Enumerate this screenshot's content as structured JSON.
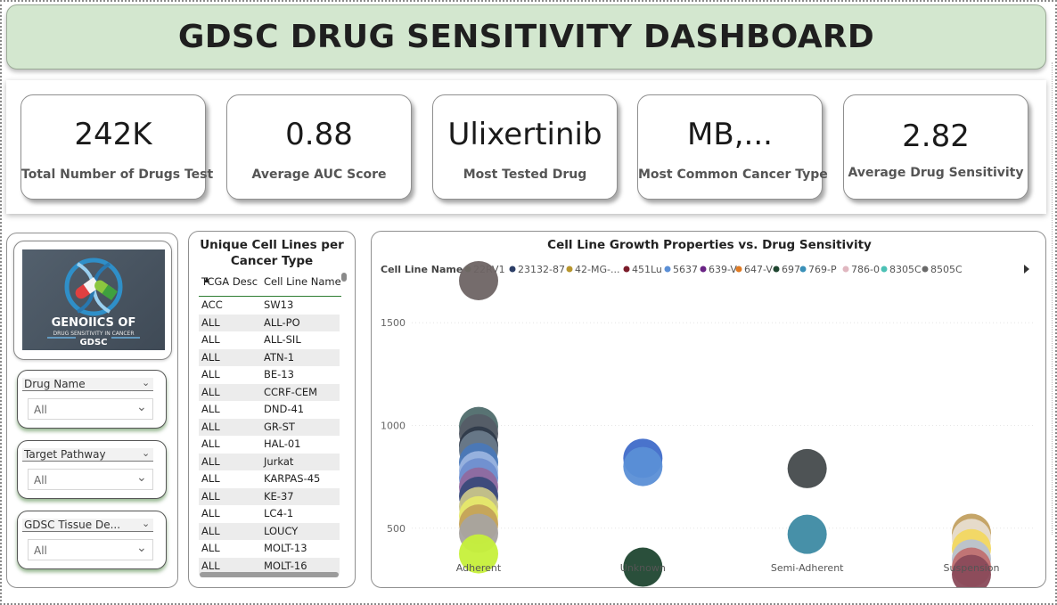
{
  "header": {
    "title": "GDSC DRUG SENSITIVITY DASHBOARD"
  },
  "kpis": [
    {
      "value": "242K",
      "label": "Total Number of Drugs Test"
    },
    {
      "value": "0.88",
      "label": "Average AUC Score"
    },
    {
      "value": "Ulixertinib",
      "label": "Most Tested Drug"
    },
    {
      "value": "MB,...",
      "label": "Most Common Cancer Type"
    },
    {
      "value": "2.82",
      "label": "Average Drug Sensitivity"
    }
  ],
  "logo": {
    "line1": "GENOIICS OF",
    "line2": "DRUG SENSITIVITY IN CANCER",
    "line3": "GDSC"
  },
  "slicers": [
    {
      "title": "Drug Name",
      "value": "All"
    },
    {
      "title": "Target Pathway",
      "value": "All"
    },
    {
      "title": "GDSC Tissue De...",
      "value": "All"
    }
  ],
  "table": {
    "title_line1": "Unique Cell Lines per",
    "title_line2": "Cancer Type",
    "columns": [
      "TCGA Desc",
      "Cell Line Name"
    ],
    "rows": [
      [
        "ACC",
        "SW13"
      ],
      [
        "ALL",
        "ALL-PO"
      ],
      [
        "ALL",
        "ALL-SIL"
      ],
      [
        "ALL",
        "ATN-1"
      ],
      [
        "ALL",
        "BE-13"
      ],
      [
        "ALL",
        "CCRF-CEM"
      ],
      [
        "ALL",
        "DND-41"
      ],
      [
        "ALL",
        "GR-ST"
      ],
      [
        "ALL",
        "HAL-01"
      ],
      [
        "ALL",
        "Jurkat"
      ],
      [
        "ALL",
        "KARPAS-45"
      ],
      [
        "ALL",
        "KE-37"
      ],
      [
        "ALL",
        "LC4-1"
      ],
      [
        "ALL",
        "LOUCY"
      ],
      [
        "ALL",
        "MOLT-13"
      ],
      [
        "ALL",
        "MOLT-16"
      ]
    ]
  },
  "chart_data": {
    "type": "scatter",
    "title": "Cell Line Growth Properties vs. Drug Sensitivity",
    "legend_title": "Cell Line Name",
    "legend_position": "top",
    "legend": [
      {
        "name": "22RV1",
        "color": "#5fa84a"
      },
      {
        "name": "23132-87",
        "color": "#2c3e66"
      },
      {
        "name": "42-MG-...",
        "color": "#b8962e"
      },
      {
        "name": "451Lu",
        "color": "#7b1c2a"
      },
      {
        "name": "5637",
        "color": "#5b8fd6"
      },
      {
        "name": "639-V",
        "color": "#6a2485"
      },
      {
        "name": "647-V",
        "color": "#e07b24"
      },
      {
        "name": "697",
        "color": "#1f4630"
      },
      {
        "name": "769-P",
        "color": "#3a90b8"
      },
      {
        "name": "786-0",
        "color": "#e0b7c0"
      },
      {
        "name": "8305C",
        "color": "#4cc1b5"
      },
      {
        "name": "8505C",
        "color": "#6a6a6a"
      }
    ],
    "categories": [
      "Adherent",
      "Unknown",
      "Semi-Adherent",
      "Suspension"
    ],
    "yticks": [
      500,
      1000,
      1500
    ],
    "ylim": [
      230,
      1770
    ],
    "grid": true,
    "points": [
      {
        "cat": "Adherent",
        "y": 1705,
        "color": "#6e6464"
      },
      {
        "cat": "Adherent",
        "y": 995,
        "color": "#4f6b6b"
      },
      {
        "cat": "Adherent",
        "y": 960,
        "color": "#555c66"
      },
      {
        "cat": "Adherent",
        "y": 900,
        "color": "#2f3a4a"
      },
      {
        "cat": "Adherent",
        "y": 880,
        "color": "#6a7a8a"
      },
      {
        "cat": "Adherent",
        "y": 820,
        "color": "#4a78b8"
      },
      {
        "cat": "Adherent",
        "y": 780,
        "color": "#9ab4e0"
      },
      {
        "cat": "Adherent",
        "y": 745,
        "color": "#6f8fcf"
      },
      {
        "cat": "Adherent",
        "y": 700,
        "color": "#8f6a9f"
      },
      {
        "cat": "Adherent",
        "y": 655,
        "color": "#3a4a7a"
      },
      {
        "cat": "Adherent",
        "y": 605,
        "color": "#c8c48a"
      },
      {
        "cat": "Adherent",
        "y": 560,
        "color": "#e6e86a"
      },
      {
        "cat": "Adherent",
        "y": 520,
        "color": "#c4a25a"
      },
      {
        "cat": "Adherent",
        "y": 475,
        "color": "#a8a3a0"
      },
      {
        "cat": "Adherent",
        "y": 375,
        "color": "#c6f03a"
      },
      {
        "cat": "Unknown",
        "y": 840,
        "color": "#3f6cc9"
      },
      {
        "cat": "Unknown",
        "y": 800,
        "color": "#5b8fd6"
      },
      {
        "cat": "Unknown",
        "y": 310,
        "color": "#1f4630"
      },
      {
        "cat": "Semi-Adherent",
        "y": 790,
        "color": "#454a4c"
      },
      {
        "cat": "Semi-Adherent",
        "y": 470,
        "color": "#3d8aa3"
      },
      {
        "cat": "Suspension",
        "y": 475,
        "color": "#c2a060"
      },
      {
        "cat": "Suspension",
        "y": 450,
        "color": "#e8ddd0"
      },
      {
        "cat": "Suspension",
        "y": 400,
        "color": "#f2d860"
      },
      {
        "cat": "Suspension",
        "y": 350,
        "color": "#b8c2d0"
      },
      {
        "cat": "Suspension",
        "y": 310,
        "color": "#c07070"
      },
      {
        "cat": "Suspension",
        "y": 275,
        "color": "#8a4a5a"
      }
    ]
  }
}
